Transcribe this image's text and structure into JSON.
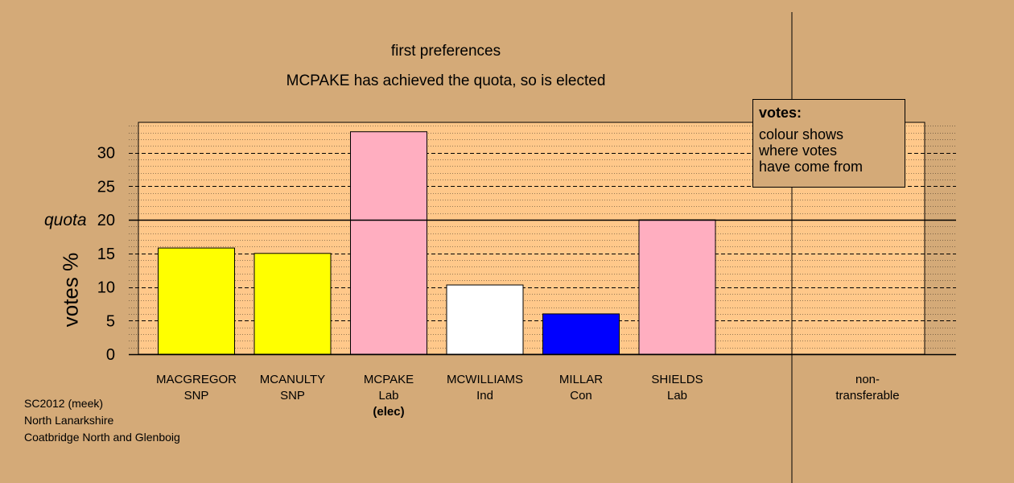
{
  "chart_data": {
    "type": "bar",
    "title": "first preferences",
    "subtitle": "MCPAKE has achieved the quota, so is elected",
    "ylabel": "votes %",
    "ylim": [
      0,
      34.5
    ],
    "yticks": [
      "0",
      "5",
      "10",
      "15",
      "20",
      "25",
      "30"
    ],
    "quota": 20,
    "quota_label": "quota",
    "categories": [
      {
        "name": "MACGREGOR",
        "party": "SNP",
        "value": 15.8,
        "color": "#ffff00",
        "note": ""
      },
      {
        "name": "MCANULTY",
        "party": "SNP",
        "value": 15.0,
        "color": "#ffff00",
        "note": ""
      },
      {
        "name": "MCPAKE",
        "party": "Lab",
        "value": 33.1,
        "color": "#ffaec0",
        "note": "(elec)"
      },
      {
        "name": "MCWILLIAMS",
        "party": "Ind",
        "value": 10.3,
        "color": "#ffffff",
        "note": ""
      },
      {
        "name": "MILLAR",
        "party": "Con",
        "value": 6.0,
        "color": "#0000ff",
        "note": ""
      },
      {
        "name": "SHIELDS",
        "party": "Lab",
        "value": 20.0,
        "color": "#ffaec0",
        "note": ""
      }
    ],
    "nontransferable_label": "non-\ntransferable",
    "grid": true,
    "legend": {
      "title": "votes:",
      "text": "colour shows\nwhere votes\nhave come from",
      "position": "top-right"
    }
  },
  "footer": [
    "SC2012 (meek)",
    "North Lanarkshire",
    "Coatbridge North and Glenboig"
  ],
  "colors": {
    "background": "#d4aa78",
    "plot_fill": "#ffc88a"
  }
}
